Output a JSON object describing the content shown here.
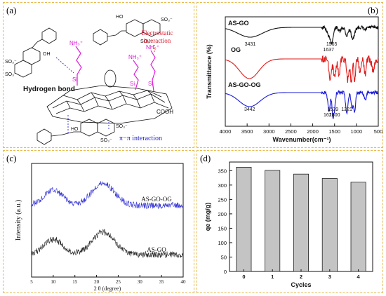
{
  "panels": {
    "a": {
      "label": "(a)",
      "text": {
        "sulfonate": "SO₃⁻",
        "hydroxyl": "HO",
        "oh": "OH",
        "amine": "NH₃⁺",
        "si": "Si",
        "cooh": "COOH",
        "electrostatic": "Electrostatic",
        "interaction": "interaction",
        "hydrogen_bond": "Hydrogen bond",
        "pi_pi": "π−π interaction"
      },
      "colors": {
        "electrostatic": "#d8182a",
        "pi_pi": "#2323c8",
        "linker": "#e01adc",
        "hbond": "#2b2bd0"
      }
    },
    "b": {
      "label": "(b)"
    },
    "c": {
      "label": "(c)"
    },
    "d": {
      "label": "(d)"
    }
  },
  "chart_data": [
    {
      "panel": "b",
      "type": "line",
      "xlabel": "Wavenumber(cm⁻¹)",
      "ylabel": "Transmittance (%)",
      "xlim": [
        4000,
        500
      ],
      "xticks": [
        4000,
        3500,
        3000,
        2500,
        2000,
        1500,
        1000,
        500
      ],
      "series": [
        {
          "name": "AS-GO",
          "color": "#111111",
          "offset": 0,
          "annotations": [
            {
              "x": 3431,
              "label": "3431"
            },
            {
              "x": 1637,
              "label": "1637"
            },
            {
              "x": 1565,
              "label": "1565"
            }
          ]
        },
        {
          "name": "OG",
          "color": "#e01a1a",
          "offset": 1,
          "annotations": []
        },
        {
          "name": "AS-GO-OG",
          "color": "#1a1ad8",
          "offset": 2,
          "annotations": [
            {
              "x": 3442,
              "label": "3442"
            },
            {
              "x": 1628,
              "label": "1628"
            },
            {
              "x": 1539,
              "label": "1539"
            },
            {
              "x": 1500,
              "label": "1500"
            },
            {
              "x": 1221,
              "label": "1221"
            }
          ]
        }
      ]
    },
    {
      "panel": "c",
      "type": "line",
      "xlabel": "2 θ (degree)",
      "ylabel": "Intensity (a.u.)",
      "xlim": [
        5,
        40
      ],
      "xticks": [
        5,
        10,
        15,
        20,
        25,
        30,
        35,
        40
      ],
      "series": [
        {
          "name": "AS-GO-OG",
          "color": "#3535d6",
          "offset": 1
        },
        {
          "name": "AS-GO",
          "color": "#222222",
          "offset": 0
        }
      ]
    },
    {
      "panel": "d",
      "type": "bar",
      "xlabel": "Cycles",
      "ylabel": "qe (mg/g)",
      "categories": [
        "0",
        "1",
        "2",
        "3",
        "4"
      ],
      "values": [
        362,
        351,
        338,
        323,
        310
      ],
      "ylim": [
        0,
        380
      ],
      "yticks": [
        0,
        50,
        100,
        150,
        200,
        250,
        300,
        350
      ]
    }
  ]
}
